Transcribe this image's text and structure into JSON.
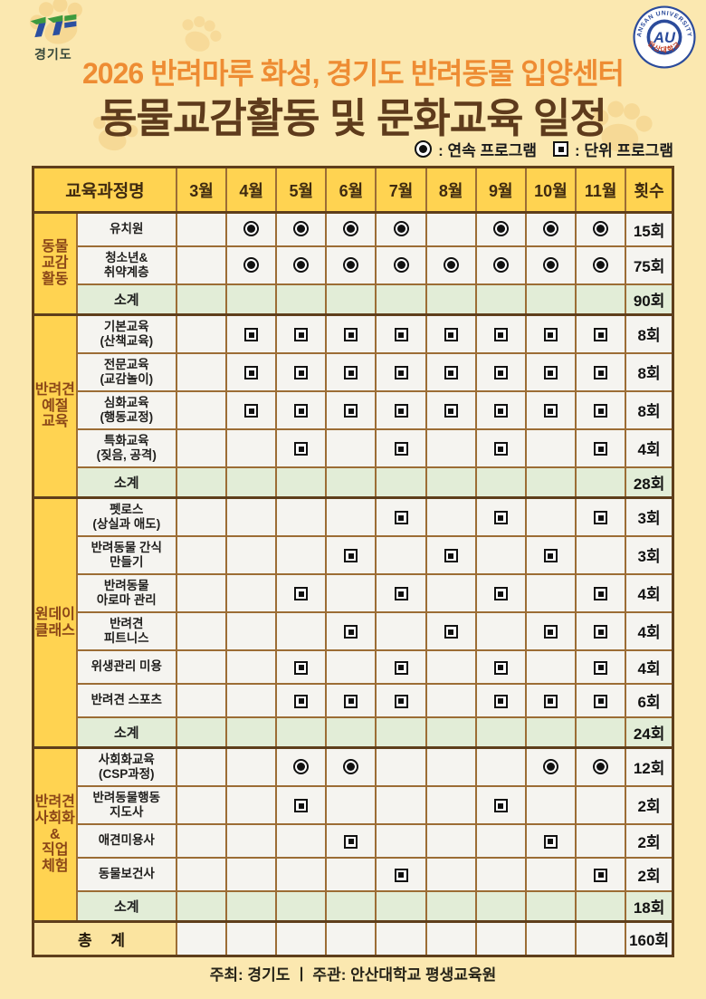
{
  "page": {
    "background": "#FBE8B0",
    "accent_yellow": "#FFD351",
    "border_brown": "#9C6D35",
    "subtotal_green": "#E2EDD7",
    "title_orange": "#EE8C33",
    "title_brown": "#5E3B1C"
  },
  "logos": {
    "gyeonggi_label": "경기도",
    "au_top": "ANSAN UNIVERSITY",
    "au_center": "AU",
    "au_bottom": "안산대학교"
  },
  "title": {
    "line1": "2026 반려마루 화성, 경기도 반려동물 입양센터",
    "line2": "동물교감활동 및 문화교육 일정"
  },
  "legend": {
    "circle_label": ": 연속 프로그램",
    "square_label": ": 단위 프로그램"
  },
  "table": {
    "name_header": "교육과정명",
    "months": [
      "3월",
      "4월",
      "5월",
      "6월",
      "7월",
      "8월",
      "9월",
      "10월",
      "11월"
    ],
    "month_numbers": [
      3,
      4,
      5,
      6,
      7,
      8,
      9,
      10,
      11
    ],
    "count_header": "횟수",
    "subtotal_label": "소계",
    "total_label": "총 계",
    "total_count": "160회",
    "groups": [
      {
        "name": [
          "동물",
          "교감",
          "활동"
        ],
        "rows": [
          {
            "label": [
              "유치원"
            ],
            "mark": "circle",
            "months": [
              4,
              5,
              6,
              7,
              9,
              10,
              11
            ],
            "count": "15회"
          },
          {
            "label": [
              "청소년&",
              "취약계층"
            ],
            "mark": "circle",
            "months": [
              4,
              5,
              6,
              7,
              8,
              9,
              10,
              11
            ],
            "count": "75회"
          }
        ],
        "subtotal": "90회"
      },
      {
        "name": [
          "반려견",
          "예절",
          "교육"
        ],
        "rows": [
          {
            "label": [
              "기본교육",
              "(산책교육)"
            ],
            "mark": "square",
            "months": [
              4,
              5,
              6,
              7,
              8,
              9,
              10,
              11
            ],
            "count": "8회"
          },
          {
            "label": [
              "전문교육",
              "(교감놀이)"
            ],
            "mark": "square",
            "months": [
              4,
              5,
              6,
              7,
              8,
              9,
              10,
              11
            ],
            "count": "8회"
          },
          {
            "label": [
              "심화교육",
              "(행동교정)"
            ],
            "mark": "square",
            "months": [
              4,
              5,
              6,
              7,
              8,
              9,
              10,
              11
            ],
            "count": "8회"
          },
          {
            "label": [
              "특화교육",
              "(짖음, 공격)"
            ],
            "mark": "square",
            "months": [
              5,
              7,
              9,
              11
            ],
            "count": "4회"
          }
        ],
        "subtotal": "28회"
      },
      {
        "name": [
          "원데이",
          "클래스"
        ],
        "rows": [
          {
            "label": [
              "펫로스",
              "(상실과 애도)"
            ],
            "mark": "square",
            "months": [
              7,
              9,
              11
            ],
            "count": "3회"
          },
          {
            "label": [
              "반려동물 간식",
              "만들기"
            ],
            "mark": "square",
            "months": [
              6,
              8,
              10
            ],
            "count": "3회"
          },
          {
            "label": [
              "반려동물",
              "아로마 관리"
            ],
            "mark": "square",
            "months": [
              5,
              7,
              9,
              11
            ],
            "count": "4회"
          },
          {
            "label": [
              "반려견",
              "피트니스"
            ],
            "mark": "square",
            "months": [
              6,
              8,
              10,
              11
            ],
            "count": "4회"
          },
          {
            "label": [
              "위생관리 미용"
            ],
            "mark": "square",
            "months": [
              5,
              7,
              9,
              11
            ],
            "count": "4회"
          },
          {
            "label": [
              "반려견 스포츠"
            ],
            "mark": "square",
            "months": [
              5,
              6,
              7,
              9,
              10,
              11
            ],
            "count": "6회"
          }
        ],
        "subtotal": "24회"
      },
      {
        "name": [
          "반려견",
          "사회화",
          "&",
          "직업",
          "체험"
        ],
        "rows": [
          {
            "label": [
              "사회화교육",
              "(CSP과정)"
            ],
            "mark": "circle",
            "months": [
              5,
              6,
              10,
              11
            ],
            "count": "12회"
          },
          {
            "label": [
              "반려동물행동",
              "지도사"
            ],
            "mark": "square",
            "months": [
              5,
              9
            ],
            "count": "2회"
          },
          {
            "label": [
              "애견미용사"
            ],
            "mark": "square",
            "months": [
              6,
              10
            ],
            "count": "2회"
          },
          {
            "label": [
              "동물보건사"
            ],
            "mark": "square",
            "months": [
              7,
              11
            ],
            "count": "2회"
          }
        ],
        "subtotal": "18회"
      }
    ]
  },
  "footer": {
    "text": "주최: 경기도   ㅣ   주관: 안산대학교 평생교육원"
  }
}
